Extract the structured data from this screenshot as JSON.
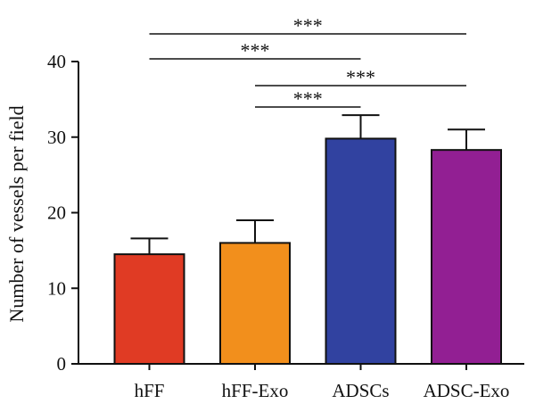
{
  "chart_data": {
    "type": "bar",
    "categories": [
      "hFF",
      "hFF-Exo",
      "ADSCs",
      "ADSC-Exo"
    ],
    "values": [
      14.5,
      16.0,
      29.8,
      28.3
    ],
    "errors": [
      2.1,
      3.0,
      3.1,
      2.7
    ],
    "bar_colors": [
      "#e03b24",
      "#f28f1c",
      "#3142a0",
      "#921f93"
    ],
    "ylabel": "Number of vessels per field",
    "ylim": [
      0,
      40
    ],
    "yticks": [
      "0",
      "10",
      "20",
      "30",
      "40"
    ],
    "significance": [
      {
        "from": "hFF",
        "to": "ADSC-Exo",
        "label": "***"
      },
      {
        "from": "hFF",
        "to": "ADSCs",
        "label": "***"
      },
      {
        "from": "hFF-Exo",
        "to": "ADSC-Exo",
        "label": "***"
      },
      {
        "from": "hFF-Exo",
        "to": "ADSCs",
        "label": "***"
      }
    ]
  }
}
